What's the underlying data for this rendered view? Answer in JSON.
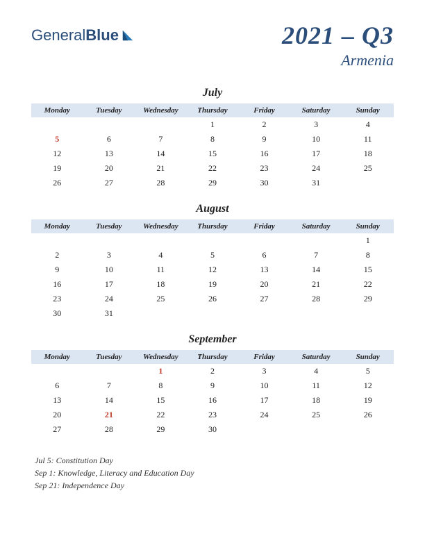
{
  "logo": {
    "text1": "General",
    "text2": "Blue",
    "icon_color1": "#2a7ab8",
    "icon_color2": "#1a4d7a"
  },
  "title": {
    "main": "2021 – Q3",
    "sub": "Armenia"
  },
  "day_headers": [
    "Monday",
    "Tuesday",
    "Wednesday",
    "Thursday",
    "Friday",
    "Saturday",
    "Sunday"
  ],
  "header_bg": "#dce5f2",
  "holiday_color": "#c0392b",
  "text_color": "#222222",
  "title_color": "#2a4d7a",
  "months": [
    {
      "name": "July",
      "weeks": [
        [
          "",
          "",
          "",
          "1",
          "2",
          "3",
          "4"
        ],
        [
          "5",
          "6",
          "7",
          "8",
          "9",
          "10",
          "11"
        ],
        [
          "12",
          "13",
          "14",
          "15",
          "16",
          "17",
          "18"
        ],
        [
          "19",
          "20",
          "21",
          "22",
          "23",
          "24",
          "25"
        ],
        [
          "26",
          "27",
          "28",
          "29",
          "30",
          "31",
          ""
        ]
      ],
      "holidays": [
        [
          1,
          0
        ]
      ]
    },
    {
      "name": "August",
      "weeks": [
        [
          "",
          "",
          "",
          "",
          "",
          "",
          "1"
        ],
        [
          "2",
          "3",
          "4",
          "5",
          "6",
          "7",
          "8"
        ],
        [
          "9",
          "10",
          "11",
          "12",
          "13",
          "14",
          "15"
        ],
        [
          "16",
          "17",
          "18",
          "19",
          "20",
          "21",
          "22"
        ],
        [
          "23",
          "24",
          "25",
          "26",
          "27",
          "28",
          "29"
        ],
        [
          "30",
          "31",
          "",
          "",
          "",
          "",
          ""
        ]
      ],
      "holidays": []
    },
    {
      "name": "September",
      "weeks": [
        [
          "",
          "",
          "1",
          "2",
          "3",
          "4",
          "5"
        ],
        [
          "6",
          "7",
          "8",
          "9",
          "10",
          "11",
          "12"
        ],
        [
          "13",
          "14",
          "15",
          "16",
          "17",
          "18",
          "19"
        ],
        [
          "20",
          "21",
          "22",
          "23",
          "24",
          "25",
          "26"
        ],
        [
          "27",
          "28",
          "29",
          "30",
          "",
          "",
          ""
        ]
      ],
      "holidays": [
        [
          0,
          2
        ],
        [
          3,
          1
        ]
      ]
    }
  ],
  "holiday_list": [
    "Jul 5: Constitution Day",
    "Sep 1: Knowledge, Literacy and Education Day",
    "Sep 21: Independence Day"
  ]
}
